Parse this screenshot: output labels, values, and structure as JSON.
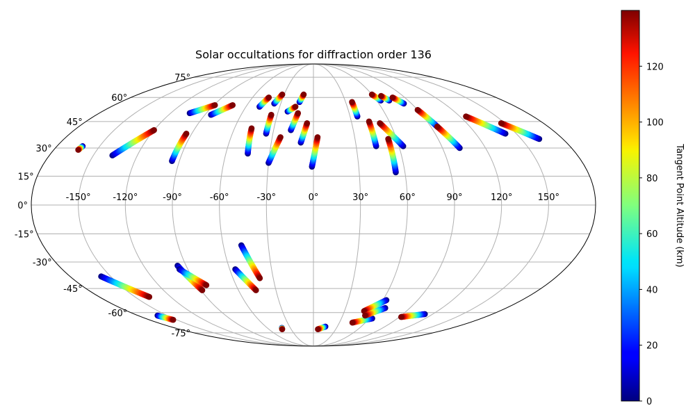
{
  "chart_data": {
    "type": "scatter",
    "projection": "mollweide",
    "title": "Solar occultations for diffraction order 136",
    "lon_ticks": [
      -150,
      -120,
      -90,
      -60,
      -30,
      0,
      30,
      60,
      90,
      120,
      150
    ],
    "lon_tick_labels": [
      "-150°",
      "-120°",
      "-90°",
      "-60°",
      "-30°",
      "0°",
      "30°",
      "60°",
      "90°",
      "120°",
      "150°"
    ],
    "lat_ticks": [
      75,
      60,
      45,
      30,
      15,
      0,
      -15,
      -30,
      -45,
      -60,
      -75
    ],
    "lat_tick_labels": [
      "75°",
      "60°",
      "45°",
      "30°",
      "15°",
      "0°",
      "-15°",
      "-30°",
      "-45°",
      "-60°",
      "-75°"
    ],
    "grid": true,
    "colorbar": {
      "label": "Tangent Point Altitude (km)",
      "range": [
        0,
        140
      ],
      "ticks": [
        0,
        20,
        40,
        60,
        80,
        100,
        120
      ],
      "tick_labels": [
        "0",
        "20",
        "40",
        "60",
        "80",
        "100",
        "120"
      ],
      "colormap": "jet"
    },
    "tracks": [
      {
        "start": [
          -162,
          31
        ],
        "end": [
          -163,
          29
        ]
      },
      {
        "start": [
          -137,
          26
        ],
        "end": [
          -120,
          40
        ]
      },
      {
        "start": [
          -104,
          50
        ],
        "end": [
          -89,
          55
        ]
      },
      {
        "start": [
          -85,
          49
        ],
        "end": [
          -73,
          55
        ]
      },
      {
        "start": [
          -95,
          23
        ],
        "end": [
          -94,
          38
        ]
      },
      {
        "start": [
          -45,
          27
        ],
        "end": [
          -47,
          41
        ]
      },
      {
        "start": [
          -48,
          54
        ],
        "end": [
          -44,
          60
        ]
      },
      {
        "start": [
          -36,
          56
        ],
        "end": [
          -32,
          62
        ]
      },
      {
        "start": [
          -35,
          38
        ],
        "end": [
          -35,
          49
        ]
      },
      {
        "start": [
          -30,
          22
        ],
        "end": [
          -24,
          36
        ]
      },
      {
        "start": [
          -22,
          51
        ],
        "end": [
          -16,
          54
        ]
      },
      {
        "start": [
          -13,
          57
        ],
        "end": [
          -10,
          62
        ]
      },
      {
        "start": [
          -17,
          40
        ],
        "end": [
          -13,
          50
        ]
      },
      {
        "start": [
          -9,
          33
        ],
        "end": [
          -5,
          44
        ]
      },
      {
        "start": [
          -1,
          20
        ],
        "end": [
          3,
          36
        ]
      },
      {
        "start": [
          36,
          48
        ],
        "end": [
          36,
          57
        ]
      },
      {
        "start": [
          44,
          31
        ],
        "end": [
          44,
          45
        ]
      },
      {
        "start": [
          63,
          31
        ],
        "end": [
          52,
          44
        ]
      },
      {
        "start": [
          54,
          17
        ],
        "end": [
          54,
          35
        ]
      },
      {
        "start": [
          64,
          58
        ],
        "end": [
          60,
          62
        ]
      },
      {
        "start": [
          72,
          58
        ],
        "end": [
          68,
          61
        ]
      },
      {
        "start": [
          83,
          56
        ],
        "end": [
          78,
          60
        ]
      },
      {
        "start": [
          95,
          42
        ],
        "end": [
          90,
          52
        ]
      },
      {
        "start": [
          102,
          30
        ],
        "end": [
          95,
          42
        ]
      },
      {
        "start": [
          142,
          38
        ],
        "end": [
          125,
          48
        ]
      },
      {
        "start": [
          163,
          35
        ],
        "end": [
          147,
          44
        ]
      },
      {
        "start": [
          -96,
          -32
        ],
        "end": [
          -89,
          -46
        ]
      },
      {
        "start": [
          -96,
          -34
        ],
        "end": [
          -83,
          -43
        ]
      },
      {
        "start": [
          -157,
          -38
        ],
        "end": [
          -138,
          -50
        ]
      },
      {
        "start": [
          -56,
          -34
        ],
        "end": [
          -46,
          -46
        ]
      },
      {
        "start": [
          -48,
          -21
        ],
        "end": [
          -40,
          -39
        ]
      },
      {
        "start": [
          -160,
          -62
        ],
        "end": [
          -154,
          -65
        ]
      },
      {
        "start": [
          -41,
          -71
        ],
        "end": [
          -42,
          -72
        ]
      },
      {
        "start": [
          15,
          -70
        ],
        "end": [
          6,
          -72
        ]
      },
      {
        "start": [
          63,
          -64
        ],
        "end": [
          45,
          -67
        ]
      },
      {
        "start": [
          63,
          -52
        ],
        "end": [
          49,
          -59
        ]
      },
      {
        "start": [
          67,
          -57
        ],
        "end": [
          53,
          -62
        ]
      },
      {
        "start": [
          112,
          -61
        ],
        "end": [
          92,
          -63
        ]
      }
    ]
  }
}
